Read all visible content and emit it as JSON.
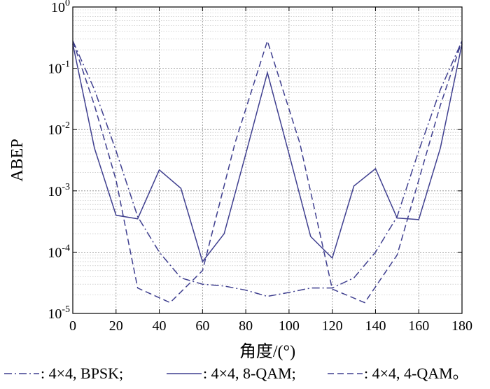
{
  "chart_data": {
    "type": "line",
    "xlabel": "角度/(°)",
    "ylabel": "ABEP",
    "yscale": "log",
    "xlim": [
      0,
      180
    ],
    "ylim": [
      1e-05,
      1
    ],
    "grid": true,
    "x_ticks": [
      0,
      20,
      40,
      60,
      80,
      100,
      120,
      140,
      160,
      180
    ],
    "y_ticks": [
      {
        "value": 1e-05,
        "base": "10",
        "exp": "-5"
      },
      {
        "value": 0.0001,
        "base": "10",
        "exp": "-4"
      },
      {
        "value": 0.001,
        "base": "10",
        "exp": "-3"
      },
      {
        "value": 0.01,
        "base": "10",
        "exp": "-2"
      },
      {
        "value": 0.1,
        "base": "10",
        "exp": "-1"
      },
      {
        "value": 1,
        "base": "10",
        "exp": "0"
      }
    ],
    "line_color": "#3f3f8f",
    "legend_position": "bottom",
    "series": [
      {
        "label": ": 4×4, BPSK;",
        "style": "dashdot",
        "x": [
          0,
          10,
          20,
          30,
          40,
          50,
          60,
          70,
          80,
          90,
          100,
          110,
          120,
          130,
          140,
          150,
          160,
          170,
          180
        ],
        "y": [
          0.28,
          0.045,
          0.0045,
          0.00038,
          0.0001,
          3.8e-05,
          3e-05,
          2.8e-05,
          2.4e-05,
          1.9e-05,
          2.2e-05,
          2.6e-05,
          2.6e-05,
          3.8e-05,
          0.0001,
          0.00038,
          0.0045,
          0.045,
          0.28
        ]
      },
      {
        "label": ": 4×4, 8-QAM;",
        "style": "solid",
        "x": [
          0,
          10,
          20,
          30,
          40,
          50,
          60,
          70,
          80,
          90,
          100,
          110,
          120,
          130,
          140,
          150,
          160,
          170,
          180
        ],
        "y": [
          0.25,
          0.005,
          0.0004,
          0.00035,
          0.0022,
          0.0011,
          7e-05,
          0.0002,
          0.004,
          0.085,
          0.004,
          0.00018,
          8e-05,
          0.0012,
          0.0023,
          0.00036,
          0.00034,
          0.005,
          0.25
        ]
      },
      {
        "label": ": 4×4, 4-QAM。",
        "style": "dashed",
        "x": [
          0,
          10,
          20,
          30,
          45,
          60,
          75,
          90,
          105,
          120,
          135,
          150,
          160,
          170,
          180
        ],
        "y": [
          0.28,
          0.025,
          0.0015,
          2.6e-05,
          1.5e-05,
          5e-05,
          0.006,
          0.28,
          0.006,
          2.5e-05,
          1.5e-05,
          9e-05,
          0.0015,
          0.025,
          0.28
        ]
      }
    ]
  }
}
